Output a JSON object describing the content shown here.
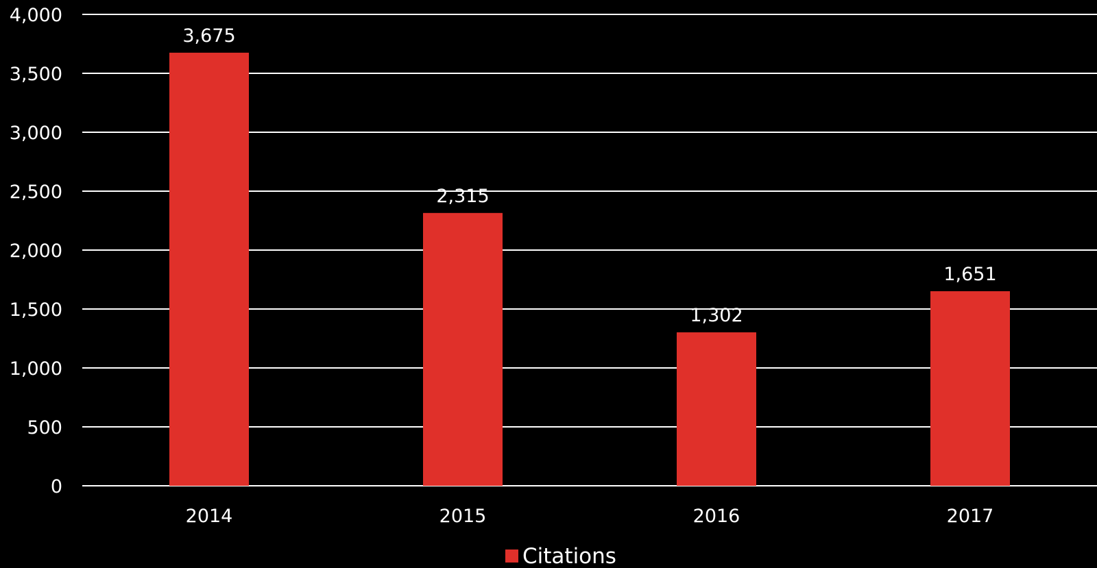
{
  "chart_data": {
    "type": "bar",
    "title": "",
    "xlabel": "",
    "ylabel": "",
    "categories": [
      "2014",
      "2015",
      "2016",
      "2017"
    ],
    "series": [
      {
        "name": "Citations",
        "values": [
          3675,
          2315,
          1302,
          1651
        ],
        "value_labels": [
          "3,675",
          "2,315",
          "1,302",
          "1,651"
        ],
        "color": "#e0302a"
      }
    ],
    "ylim": [
      0,
      4000
    ],
    "y_ticks": [
      0,
      500,
      1000,
      1500,
      2000,
      2500,
      3000,
      3500,
      4000
    ],
    "y_tick_labels": [
      "0",
      "500",
      "1,000",
      "1,500",
      "2,000",
      "2,500",
      "3,000",
      "3,500",
      "4,000"
    ],
    "grid": true,
    "legend": {
      "position": "bottom",
      "entries": [
        "Citations"
      ]
    },
    "colors": {
      "background": "#000000",
      "text": "#ffffff",
      "gridline": "#ffffff",
      "bar": "#e0302a"
    }
  }
}
